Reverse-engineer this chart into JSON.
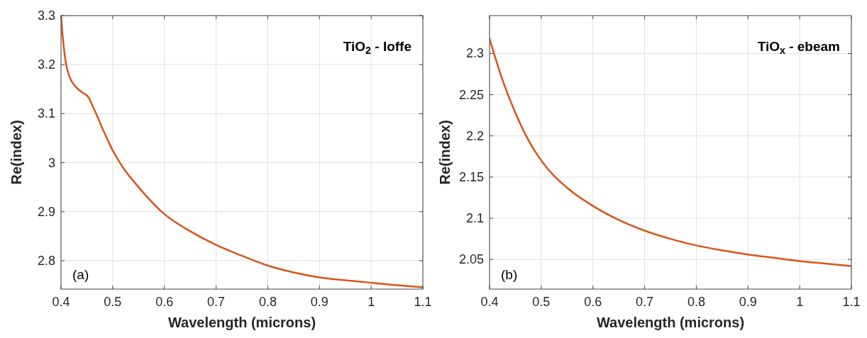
{
  "chart_data": [
    {
      "type": "line",
      "xlabel": "Wavelength (microns)",
      "ylabel": "Re(index)",
      "annotations": [
        "TiO$_{2}$ - Ioffe",
        "(a)"
      ],
      "xlim": [
        0.4,
        1.1
      ],
      "ylim": [
        2.742,
        3.3
      ],
      "xticks": [
        0.4,
        0.5,
        0.6,
        0.7,
        0.8,
        0.9,
        1,
        1.1
      ],
      "yticks": [
        2.8,
        2.9,
        3,
        3.1,
        3.2,
        3.3
      ],
      "grid": true,
      "x": [
        0.4,
        0.403,
        0.406,
        0.41,
        0.415,
        0.42,
        0.43,
        0.44,
        0.45,
        0.455,
        0.46,
        0.47,
        0.48,
        0.49,
        0.5,
        0.52,
        0.55,
        0.6,
        0.65,
        0.7,
        0.75,
        0.8,
        0.85,
        0.9,
        0.95,
        1.0,
        1.05,
        1.1
      ],
      "series": [
        {
          "color": "#d95319",
          "values": [
            3.3,
            3.26,
            3.23,
            3.2,
            3.18,
            3.167,
            3.153,
            3.144,
            3.137,
            3.13,
            3.118,
            3.095,
            3.07,
            3.047,
            3.025,
            2.99,
            2.95,
            2.895,
            2.86,
            2.832,
            2.81,
            2.79,
            2.776,
            2.766,
            2.76,
            2.755,
            2.75,
            2.746
          ]
        }
      ]
    },
    {
      "type": "line",
      "xlabel": "Wavelength (microns)",
      "ylabel": "Re(index)",
      "annotations": [
        "TiO$_{x}$ - ebeam",
        "(b)"
      ],
      "xlim": [
        0.4,
        1.1
      ],
      "ylim": [
        2.014,
        2.346
      ],
      "xticks": [
        0.4,
        0.5,
        0.6,
        0.7,
        0.8,
        0.9,
        1,
        1.1
      ],
      "yticks": [
        2.05,
        2.1,
        2.15,
        2.2,
        2.25,
        2.3
      ],
      "grid": true,
      "x": [
        0.4,
        0.425,
        0.45,
        0.475,
        0.5,
        0.55,
        0.6,
        0.65,
        0.7,
        0.75,
        0.8,
        0.85,
        0.9,
        0.95,
        1.0,
        1.05,
        1.1
      ],
      "series": [
        {
          "color": "#d95319",
          "values": [
            2.318,
            2.268,
            2.228,
            2.195,
            2.17,
            2.137,
            2.115,
            2.098,
            2.085,
            2.075,
            2.067,
            2.061,
            2.056,
            2.052,
            2.048,
            2.045,
            2.042
          ]
        }
      ]
    }
  ]
}
